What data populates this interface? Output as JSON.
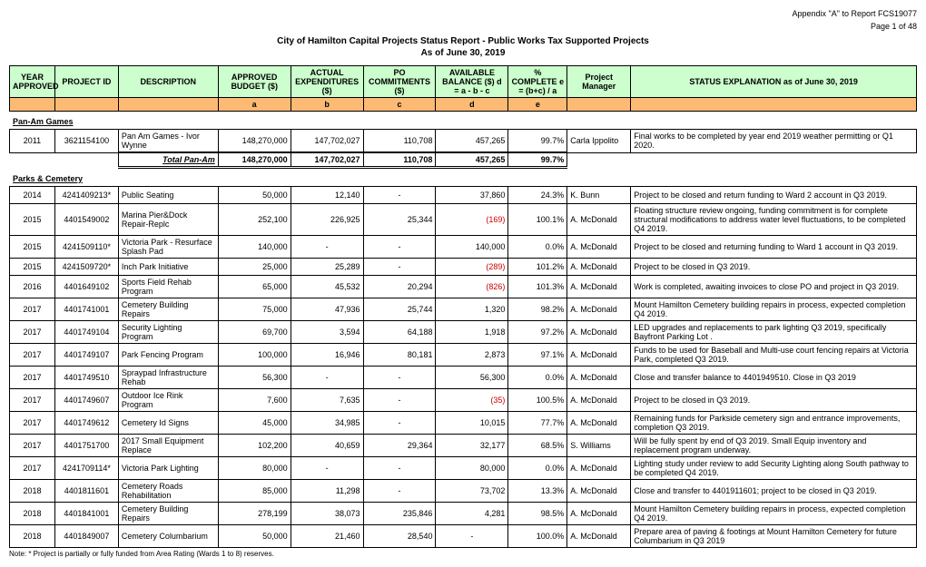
{
  "header": {
    "appendix": "Appendix \"A\" to Report FCS19077",
    "page": "Page  1 of 48",
    "title": "City of Hamilton Capital Projects Status Report - Public Works Tax Supported Projects",
    "asof": "As of June 30, 2019"
  },
  "columns": {
    "year": "YEAR APPROVED",
    "id": "PROJECT ID",
    "desc": "DESCRIPTION",
    "budget": "APPROVED BUDGET ($)",
    "actual": "ACTUAL EXPENDITURES ($)",
    "po": "PO COMMITMENTS ($)",
    "avail": "AVAILABLE BALANCE ($) d = a - b - c",
    "pct": "% COMPLETE e = (b+c) / a",
    "mgr": "Project Manager",
    "status": "STATUS EXPLANATION as of June 30, 2019"
  },
  "letters": {
    "a": "a",
    "b": "b",
    "c": "c",
    "d": "d",
    "e": "e"
  },
  "sections": [
    {
      "name": "Pan-Am Games",
      "rows": [
        {
          "year": "2011",
          "id": "3621154100",
          "desc": "Pan Am Games - Ivor Wynne",
          "budget": "148,270,000",
          "actual": "147,702,027",
          "po": "110,708",
          "avail": "457,265",
          "pct": "99.7%",
          "mgr": "Carla Ippolito",
          "status": "Final works to be completed by year end 2019 weather permitting or Q1 2020."
        }
      ],
      "total": {
        "label": "Total Pan-Am",
        "budget": "148,270,000",
        "actual": "147,702,027",
        "po": "110,708",
        "avail": "457,265",
        "pct": "99.7%"
      }
    },
    {
      "name": "Parks & Cemetery",
      "rows": [
        {
          "year": "2014",
          "id": "4241409213*",
          "desc": "Public Seating",
          "budget": "50,000",
          "actual": "12,140",
          "po": "-",
          "avail": "37,860",
          "pct": "24.3%",
          "mgr": "K. Bunn",
          "status": "Project to be closed and return funding to Ward 2 account in Q3 2019."
        },
        {
          "year": "2015",
          "id": "4401549002",
          "desc": "Marina Pier&Dock Repair-Replc",
          "budget": "252,100",
          "actual": "226,925",
          "po": "25,344",
          "avail": "(169)",
          "neg": true,
          "pct": "100.1%",
          "mgr": "A. McDonald",
          "status": "Floating structure review ongoing, funding commitment is for complete structural modifications to address water level fluctuations, to be completed Q4 2019."
        },
        {
          "year": "2015",
          "id": "4241509110*",
          "desc": "Victoria Park - Resurface Splash Pad",
          "budget": "140,000",
          "actual": "-",
          "po": "-",
          "avail": "140,000",
          "pct": "0.0%",
          "mgr": "A. McDonald",
          "status": "Project to be closed and returning funding to Ward 1 account in Q3 2019."
        },
        {
          "year": "2015",
          "id": "4241509720*",
          "desc": "Inch Park Initiative",
          "budget": "25,000",
          "actual": "25,289",
          "po": "-",
          "avail": "(289)",
          "neg": true,
          "pct": "101.2%",
          "mgr": "A. McDonald",
          "status": "Project to be closed in Q3 2019."
        },
        {
          "year": "2016",
          "id": "4401649102",
          "desc": "Sports Field Rehab Program",
          "budget": "65,000",
          "actual": "45,532",
          "po": "20,294",
          "avail": "(826)",
          "neg": true,
          "pct": "101.3%",
          "mgr": "A. McDonald",
          "status": "Work is completed, awaiting invoices to close PO and project in Q3 2019."
        },
        {
          "year": "2017",
          "id": "4401741001",
          "desc": "Cemetery Building Repairs",
          "budget": "75,000",
          "actual": "47,936",
          "po": "25,744",
          "avail": "1,320",
          "pct": "98.2%",
          "mgr": "A. McDonald",
          "status": "Mount Hamilton Cemetery building repairs in process, expected completion Q4 2019."
        },
        {
          "year": "2017",
          "id": "4401749104",
          "desc": "Security Lighting Program",
          "budget": "69,700",
          "actual": "3,594",
          "po": "64,188",
          "avail": "1,918",
          "pct": "97.2%",
          "mgr": "A. McDonald",
          "status": "LED upgrades and replacements to park lighting Q3 2019, specifically Bayfront Parking Lot ."
        },
        {
          "year": "2017",
          "id": "4401749107",
          "desc": "Park Fencing Program",
          "budget": "100,000",
          "actual": "16,946",
          "po": "80,181",
          "avail": "2,873",
          "pct": "97.1%",
          "mgr": "A. McDonald",
          "status": "Funds to be used for Baseball and Multi-use court fencing repairs at Victoria Park, completed Q3 2019."
        },
        {
          "year": "2017",
          "id": "4401749510",
          "desc": "Spraypad Infrastructure Rehab",
          "budget": "56,300",
          "actual": "-",
          "po": "-",
          "avail": "56,300",
          "pct": "0.0%",
          "mgr": "A. McDonald",
          "status": "Close and transfer balance to 4401949510.  Close in Q3 2019"
        },
        {
          "year": "2017",
          "id": "4401749607",
          "desc": "Outdoor Ice Rink Program",
          "budget": "7,600",
          "actual": "7,635",
          "po": "-",
          "avail": "(35)",
          "neg": true,
          "pct": "100.5%",
          "mgr": "A. McDonald",
          "status": "Project to be closed in Q3 2019."
        },
        {
          "year": "2017",
          "id": "4401749612",
          "desc": "Cemetery Id Signs",
          "budget": "45,000",
          "actual": "34,985",
          "po": "-",
          "avail": "10,015",
          "pct": "77.7%",
          "mgr": "A. McDonald",
          "status": "Remaining funds for Parkside cemetery sign and entrance improvements, completion Q3 2019."
        },
        {
          "year": "2017",
          "id": "4401751700",
          "desc": "2017 Small Equipment Replace",
          "budget": "102,200",
          "actual": "40,659",
          "po": "29,364",
          "avail": "32,177",
          "pct": "68.5%",
          "mgr": "S. Williams",
          "status": "Will be fully spent by end of Q3 2019.   Small Equip inventory and replacement program underway."
        },
        {
          "year": "2017",
          "id": "4241709114*",
          "desc": " Victoria Park Lighting",
          "budget": "80,000",
          "actual": "-",
          "po": "-",
          "avail": "80,000",
          "pct": "0.0%",
          "mgr": "A. McDonald",
          "status": "Lighting study under review to add Security Lighting along South pathway to be completed Q4 2019."
        },
        {
          "year": "2018",
          "id": "4401811601",
          "desc": "Cemetery Roads Rehabilitation",
          "budget": "85,000",
          "actual": "11,298",
          "po": "-",
          "avail": "73,702",
          "pct": "13.3%",
          "mgr": "A. McDonald",
          "status": "Close and transfer to 4401911601; project to be closed in Q3 2019."
        },
        {
          "year": "2018",
          "id": "4401841001",
          "desc": "Cemetery Building Repairs",
          "budget": "278,199",
          "actual": "38,073",
          "po": "235,846",
          "avail": "4,281",
          "pct": "98.5%",
          "mgr": "A. McDonald",
          "status": "Mount Hamilton Cemetery building repairs in process, expected completion Q4 2019."
        },
        {
          "year": "2018",
          "id": "4401849007",
          "desc": "Cemetery Columbarium",
          "budget": "50,000",
          "actual": "21,460",
          "po": "28,540",
          "avail": "-",
          "pct": "100.0%",
          "mgr": "A. McDonald",
          "status": "Prepare area of paving & footings at Mount Hamilton Cemetery for future Columbarium in Q3 2019"
        }
      ]
    }
  ],
  "footnote": "Note: * Project is partially or fully funded from Area Rating (Wards 1 to 8) reserves."
}
